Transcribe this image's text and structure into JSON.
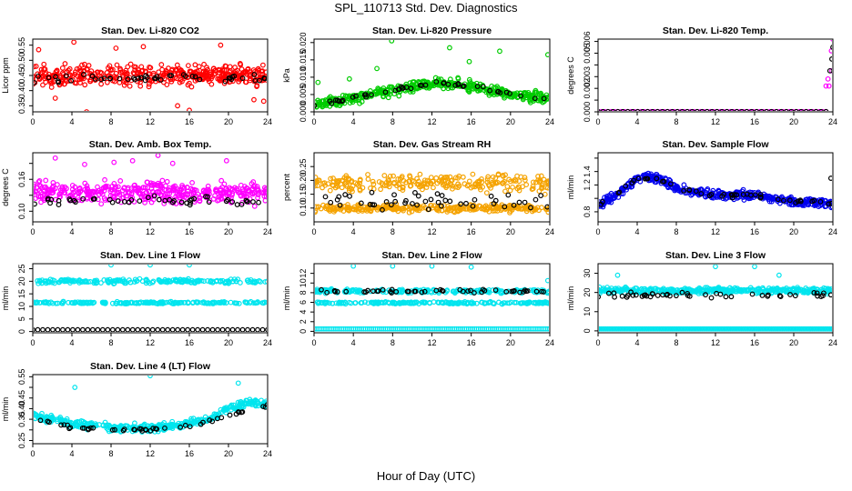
{
  "title": "SPL_110713  Std. Dev. Diagnostics",
  "xlabel": "Hour of Day (UTC)",
  "chart_data": [
    {
      "type": "scatter",
      "title": "Stan. Dev. Li-820 CO2",
      "ylabel": "Licor ppm",
      "xlim": [
        0,
        24
      ],
      "ylim": [
        0.33,
        0.57
      ],
      "xticks": [
        0,
        4,
        8,
        12,
        16,
        20,
        24
      ],
      "yticks": [
        0.35,
        0.4,
        0.45,
        0.5,
        0.55
      ],
      "ytick_labels": [
        "0.35",
        "0.40",
        "0.45",
        "0.50",
        "0.55"
      ],
      "series": [
        {
          "color": "#ff0000",
          "shapes": [
            {
              "kind": "cloud",
              "x": [
                0,
                24
              ],
              "base": [
                0.45,
                0.45
              ],
              "spread": 0.045,
              "n": 420
            },
            {
              "kind": "points",
              "x": [
                4.2,
                5.5,
                11.3,
                14.8,
                16.0,
                2.3,
                8.5,
                19.2,
                22.6,
                0.6,
                23.6
              ],
              "y": [
                0.56,
                0.33,
                0.545,
                0.35,
                0.335,
                0.375,
                0.54,
                0.55,
                0.37,
                0.535,
                0.365
              ]
            }
          ]
        },
        {
          "color": "#000000",
          "shapes": [
            {
              "kind": "cloud",
              "x": [
                0,
                24
              ],
              "base": [
                0.44,
                0.44
              ],
              "spread": 0.022,
              "n": 48
            }
          ]
        }
      ]
    },
    {
      "type": "scatter",
      "title": "Stan. Dev. Li-820 Pressure",
      "ylabel": "kPa",
      "xlim": [
        0,
        24
      ],
      "ylim": [
        0,
        0.021
      ],
      "xticks": [
        0,
        4,
        8,
        12,
        16,
        20,
        24
      ],
      "yticks": [
        0.0,
        0.005,
        0.01,
        0.015,
        0.02
      ],
      "ytick_labels": [
        "0.000",
        "0.005",
        "0.010",
        "0.015",
        "0.020"
      ],
      "series": [
        {
          "color": "#00cc00",
          "shapes": [
            {
              "kind": "cloud",
              "x": [
                0,
                4,
                8,
                12,
                16,
                20,
                24
              ],
              "base": [
                0.002,
                0.004,
                0.006,
                0.0085,
                0.0075,
                0.005,
                0.004
              ],
              "spread": 0.0022,
              "n": 430
            },
            {
              "kind": "points",
              "x": [
                7.9,
                13.8,
                15.8,
                18.9,
                23.8,
                0.4,
                3.6,
                6.4
              ],
              "y": [
                0.0205,
                0.0185,
                0.0145,
                0.0175,
                0.0165,
                0.0085,
                0.0095,
                0.0125
              ]
            }
          ]
        },
        {
          "color": "#000000",
          "shapes": [
            {
              "kind": "cloud",
              "x": [
                0,
                4,
                8,
                12,
                16,
                20,
                24
              ],
              "base": [
                0.002,
                0.004,
                0.006,
                0.0085,
                0.0075,
                0.005,
                0.004
              ],
              "spread": 0.0008,
              "n": 48
            }
          ]
        }
      ]
    },
    {
      "type": "scatter",
      "title": "Stan. Dev. Li-820 Temp.",
      "ylabel": "degrees C",
      "xlim": [
        0,
        24
      ],
      "ylim": [
        0,
        0.0062
      ],
      "xticks": [
        0,
        4,
        8,
        12,
        16,
        20,
        24
      ],
      "yticks": [
        0.0,
        0.001,
        0.002,
        0.003,
        0.004,
        0.005,
        0.006
      ],
      "ytick_labels": [
        "0.000",
        "",
        "0.002",
        "0.003",
        "",
        "0.005",
        "0.006"
      ],
      "series": [
        {
          "color": "#ff00ff",
          "shapes": [
            {
              "kind": "line",
              "x": [
                0,
                23.3
              ],
              "y": [
                2e-05,
                2e-05
              ],
              "n": 70
            },
            {
              "kind": "points",
              "x": [
                23.3,
                23.6,
                23.9,
                24.0,
                23.5,
                23.85
              ],
              "y": [
                0.0022,
                0.0022,
                0.0035,
                0.0062,
                0.0028,
                0.0052
              ]
            }
          ]
        },
        {
          "color": "#000000",
          "shapes": [
            {
              "kind": "line",
              "x": [
                0,
                23.3
              ],
              "y": [
                2e-05,
                2e-05
              ],
              "n": 47
            },
            {
              "kind": "points",
              "x": [
                23.7,
                23.9,
                24.0
              ],
              "y": [
                0.0035,
                0.0045,
                0.0055
              ]
            }
          ]
        }
      ]
    },
    {
      "type": "scatter",
      "title": "Stan. Dev. Amb. Box Temp.",
      "ylabel": "degrees C",
      "xlim": [
        0,
        24
      ],
      "ylim": [
        0.08,
        0.21
      ],
      "xticks": [
        0,
        4,
        8,
        12,
        16,
        20,
        24
      ],
      "yticks": [
        0.1,
        0.13,
        0.16,
        0.19
      ],
      "ytick_labels": [
        "0.10",
        "",
        "0.16",
        ""
      ],
      "series": [
        {
          "color": "#ff00ff",
          "shapes": [
            {
              "kind": "cloud",
              "x": [
                0,
                24
              ],
              "base": [
                0.135,
                0.135
              ],
              "spread": 0.028,
              "n": 420
            },
            {
              "kind": "points",
              "x": [
                2.3,
                8.3,
                10.2,
                12.8,
                14.3,
                19.8,
                5.3
              ],
              "y": [
                0.2,
                0.192,
                0.195,
                0.205,
                0.19,
                0.195,
                0.188
              ]
            }
          ]
        },
        {
          "color": "#000000",
          "shapes": [
            {
              "kind": "cloud",
              "x": [
                0,
                24
              ],
              "base": [
                0.12,
                0.12
              ],
              "spread": 0.012,
              "n": 48
            }
          ]
        }
      ]
    },
    {
      "type": "scatter",
      "title": "Stan. Dev. Gas Stream RH",
      "ylabel": "percent",
      "xlim": [
        0,
        24
      ],
      "ylim": [
        0.05,
        0.3
      ],
      "xticks": [
        0,
        4,
        8,
        12,
        16,
        20,
        24
      ],
      "yticks": [
        0.1,
        0.15,
        0.2,
        0.25
      ],
      "ytick_labels": [
        "0.10",
        "0.15",
        "0.20",
        "0.25"
      ],
      "series": [
        {
          "color": "#f5a300",
          "shapes": [
            {
              "kind": "cloud",
              "x": [
                0,
                24
              ],
              "base": [
                0.1,
                0.1
              ],
              "spread": 0.02,
              "n": 300
            },
            {
              "kind": "cloud",
              "x": [
                0,
                24
              ],
              "base": [
                0.19,
                0.19
              ],
              "spread": 0.045,
              "n": 250
            }
          ]
        },
        {
          "color": "#000000",
          "shapes": [
            {
              "kind": "cloud",
              "x": [
                0,
                24
              ],
              "base": [
                0.13,
                0.13
              ],
              "spread": 0.05,
              "n": 48
            }
          ]
        }
      ]
    },
    {
      "type": "scatter",
      "title": "Stan. Dev. Sample Flow",
      "ylabel": "ml/min",
      "xlim": [
        0,
        24
      ],
      "ylim": [
        0.65,
        1.68
      ],
      "xticks": [
        0,
        4,
        8,
        12,
        16,
        20,
        24
      ],
      "yticks": [
        0.8,
        1.0,
        1.2,
        1.4,
        1.6
      ],
      "ytick_labels": [
        "0.8",
        "",
        "1.2",
        "1.4",
        ""
      ],
      "series": [
        {
          "color": "#0000ee",
          "shapes": [
            {
              "kind": "cloud",
              "x": [
                0,
                2,
                4,
                6,
                8,
                12,
                16,
                20,
                24
              ],
              "base": [
                0.9,
                1.05,
                1.3,
                1.3,
                1.15,
                1.05,
                1.05,
                0.95,
                0.93
              ],
              "spread": 0.09,
              "n": 430
            }
          ]
        },
        {
          "color": "#000000",
          "shapes": [
            {
              "kind": "cloud",
              "x": [
                0,
                2,
                4,
                6,
                8,
                12,
                16,
                20,
                24
              ],
              "base": [
                0.9,
                1.05,
                1.3,
                1.3,
                1.15,
                1.05,
                1.05,
                0.95,
                0.93
              ],
              "spread": 0.05,
              "n": 48
            },
            {
              "kind": "points",
              "x": [
                23.8
              ],
              "y": [
                1.3
              ]
            }
          ]
        }
      ]
    },
    {
      "type": "scatter",
      "title": "Stan. Dev. Line 1 Flow",
      "ylabel": "ml/min",
      "xlim": [
        0,
        24
      ],
      "ylim": [
        -0.5,
        27
      ],
      "xticks": [
        0,
        4,
        8,
        12,
        16,
        20,
        24
      ],
      "yticks": [
        0,
        5,
        10,
        15,
        20,
        25
      ],
      "ytick_labels": [
        "0",
        "5",
        "10",
        "15",
        "20",
        "25"
      ],
      "series": [
        {
          "color": "#00e5ee",
          "shapes": [
            {
              "kind": "cloud",
              "x": [
                0,
                24
              ],
              "base": [
                20,
                20
              ],
              "spread": 1.2,
              "n": 200
            },
            {
              "kind": "cloud",
              "x": [
                0,
                24
              ],
              "base": [
                11.5,
                11.5
              ],
              "spread": 0.6,
              "n": 200
            },
            {
              "kind": "points",
              "x": [
                8.0,
                12.0,
                16.0
              ],
              "y": [
                26.5,
                26.5,
                26.5
              ]
            }
          ]
        },
        {
          "color": "#000000",
          "shapes": [
            {
              "kind": "line",
              "x": [
                0,
                24
              ],
              "y": [
                0.7,
                0.7
              ],
              "n": 48
            }
          ]
        }
      ]
    },
    {
      "type": "scatter",
      "title": "Stan. Dev. Line 2 Flow",
      "ylabel": "ml/min",
      "xlim": [
        0,
        24
      ],
      "ylim": [
        -0.3,
        14
      ],
      "xticks": [
        0,
        4,
        8,
        12,
        16,
        20,
        24
      ],
      "yticks": [
        0,
        2,
        4,
        6,
        8,
        10,
        12
      ],
      "ytick_labels": [
        "0",
        "2",
        "4",
        "6",
        "8",
        "10",
        "12"
      ],
      "series": [
        {
          "color": "#00e5ee",
          "shapes": [
            {
              "kind": "cloud",
              "x": [
                0,
                24
              ],
              "base": [
                8.3,
                8.3
              ],
              "spread": 0.6,
              "n": 200
            },
            {
              "kind": "cloud",
              "x": [
                0,
                24
              ],
              "base": [
                5.9,
                5.9
              ],
              "spread": 0.3,
              "n": 200
            },
            {
              "kind": "line",
              "x": [
                0,
                24
              ],
              "y": [
                0.5,
                0.5
              ],
              "n": 120
            },
            {
              "kind": "points",
              "x": [
                4.0,
                8.0,
                12.0,
                16.0,
                23.8
              ],
              "y": [
                13.5,
                13.5,
                13.5,
                13.3,
                10.5
              ]
            }
          ]
        },
        {
          "color": "#000000",
          "shapes": [
            {
              "kind": "cloud",
              "x": [
                0,
                24
              ],
              "base": [
                8.3,
                8.3
              ],
              "spread": 0.5,
              "n": 48
            }
          ]
        }
      ]
    },
    {
      "type": "scatter",
      "title": "Stan. Dev. Line 3 Flow",
      "ylabel": "ml/min",
      "xlim": [
        0,
        24
      ],
      "ylim": [
        -1,
        35
      ],
      "xticks": [
        0,
        4,
        8,
        12,
        16,
        20,
        24
      ],
      "yticks": [
        0,
        10,
        20,
        30
      ],
      "ytick_labels": [
        "0",
        "10",
        "20",
        "30"
      ],
      "series": [
        {
          "color": "#00e5ee",
          "shapes": [
            {
              "kind": "cloud",
              "x": [
                0,
                24
              ],
              "base": [
                21,
                21
              ],
              "spread": 2.2,
              "n": 400
            },
            {
              "kind": "line",
              "x": [
                0,
                24
              ],
              "y": [
                1.0,
                1.0
              ],
              "n": 150
            },
            {
              "kind": "points",
              "x": [
                2.0,
                12.0,
                16.0,
                18.5
              ],
              "y": [
                29,
                33.5,
                33.5,
                29
              ]
            }
          ]
        },
        {
          "color": "#000000",
          "shapes": [
            {
              "kind": "cloud",
              "x": [
                0,
                24
              ],
              "base": [
                18.5,
                18.5
              ],
              "spread": 1.8,
              "n": 48
            }
          ]
        }
      ]
    },
    {
      "type": "scatter",
      "title": "Stan. Dev. Line 4 (LT) Flow",
      "ylabel": "ml/min",
      "xlim": [
        0,
        24
      ],
      "ylim": [
        0.235,
        0.56
      ],
      "xticks": [
        0,
        4,
        8,
        12,
        16,
        20,
        24
      ],
      "yticks": [
        0.25,
        0.3,
        0.35,
        0.4,
        0.45,
        0.5,
        0.55
      ],
      "ytick_labels": [
        "0.25",
        "",
        "0.35",
        "0.40",
        "0.45",
        "",
        "0.55"
      ],
      "series": [
        {
          "color": "#00e5ee",
          "shapes": [
            {
              "kind": "cloud",
              "x": [
                0,
                4,
                8,
                12,
                16,
                18,
                20,
                22,
                24
              ],
              "base": [
                0.37,
                0.33,
                0.31,
                0.31,
                0.33,
                0.35,
                0.4,
                0.43,
                0.42
              ],
              "spread": 0.025,
              "n": 420
            },
            {
              "kind": "points",
              "x": [
                12.0,
                4.3,
                21.0
              ],
              "y": [
                0.555,
                0.5,
                0.52
              ]
            }
          ]
        },
        {
          "color": "#000000",
          "shapes": [
            {
              "kind": "cloud",
              "x": [
                0,
                4,
                8,
                12,
                16,
                18,
                20,
                22,
                24
              ],
              "base": [
                0.35,
                0.31,
                0.3,
                0.3,
                0.32,
                0.34,
                0.37,
                0.39,
                0.41
              ],
              "spread": 0.013,
              "n": 48
            }
          ]
        }
      ]
    }
  ]
}
